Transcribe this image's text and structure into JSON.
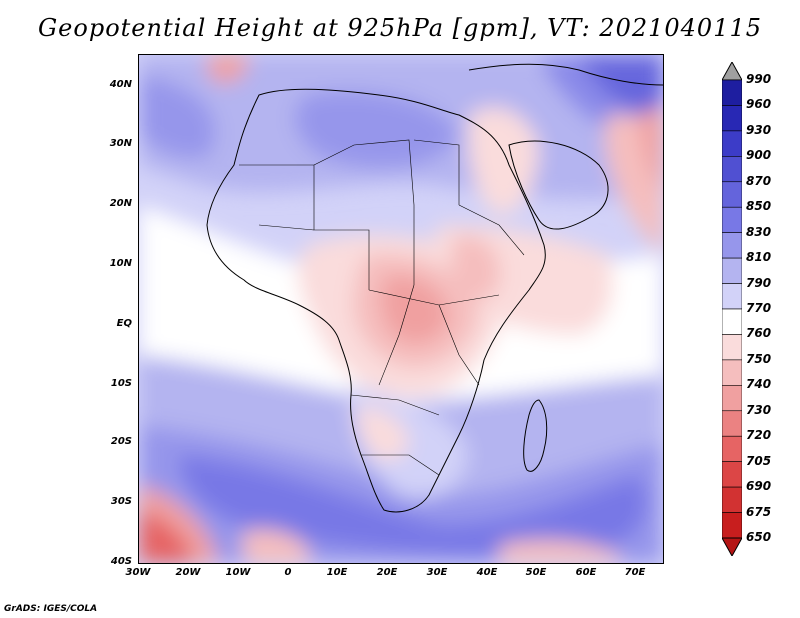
{
  "title": "Geopotential Height at 925hPa [gpm], VT: 2021040115",
  "footer": "GrADS: IGES/COLA",
  "lat_labels": [
    "40N",
    "30N",
    "20N",
    "10N",
    "EQ",
    "10S",
    "20S",
    "30S",
    "40S"
  ],
  "lon_labels": [
    "30W",
    "20W",
    "10W",
    "0",
    "10E",
    "20E",
    "30E",
    "40E",
    "50E",
    "60E",
    "70E"
  ],
  "colorbar": {
    "levels": [
      "990",
      "960",
      "930",
      "900",
      "870",
      "850",
      "830",
      "810",
      "790",
      "770",
      "760",
      "750",
      "740",
      "730",
      "720",
      "705",
      "690",
      "675",
      "650"
    ],
    "colors": [
      "#a0a0a0",
      "#1e1ea0",
      "#2828b4",
      "#3c3cc8",
      "#5050d2",
      "#6464dc",
      "#7878e6",
      "#9696eb",
      "#b4b4f0",
      "#d2d2f8",
      "#ffffff",
      "#fadcdc",
      "#f5bebe",
      "#f0a0a0",
      "#eb8282",
      "#e66464",
      "#dc4646",
      "#d23232",
      "#c81e1e",
      "#b41414"
    ]
  }
}
